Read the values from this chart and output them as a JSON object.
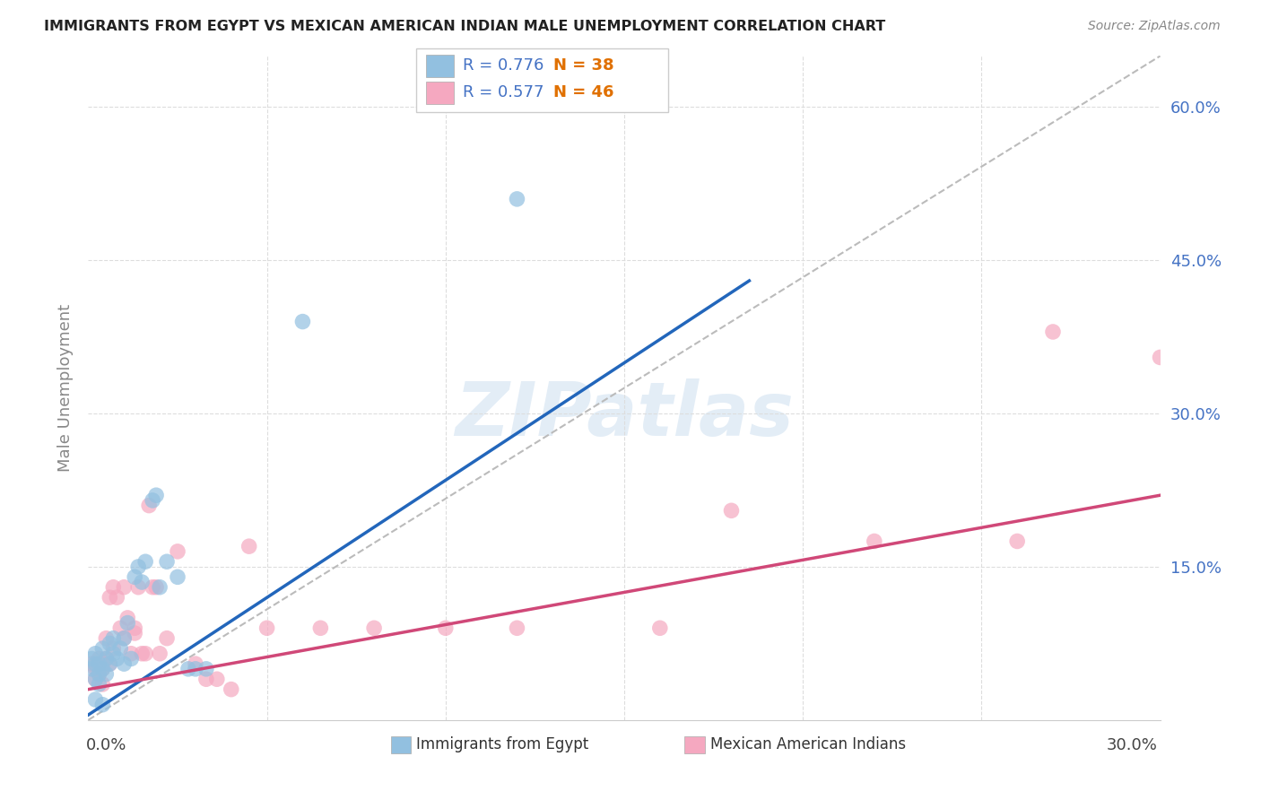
{
  "title": "IMMIGRANTS FROM EGYPT VS MEXICAN AMERICAN INDIAN MALE UNEMPLOYMENT CORRELATION CHART",
  "source": "Source: ZipAtlas.com",
  "ylabel": "Male Unemployment",
  "xlim": [
    0.0,
    0.3
  ],
  "ylim": [
    0.0,
    0.65
  ],
  "watermark": "ZIPatlas",
  "blue_color": "#92c0e0",
  "pink_color": "#f5a8c0",
  "blue_line_color": "#2266bb",
  "pink_line_color": "#d04878",
  "diag_color": "#bbbbbb",
  "grid_color": "#dddddd",
  "blue_scatter": [
    [
      0.001,
      0.05
    ],
    [
      0.001,
      0.06
    ],
    [
      0.002,
      0.055
    ],
    [
      0.002,
      0.04
    ],
    [
      0.002,
      0.065
    ],
    [
      0.003,
      0.045
    ],
    [
      0.003,
      0.055
    ],
    [
      0.003,
      0.035
    ],
    [
      0.004,
      0.05
    ],
    [
      0.004,
      0.07
    ],
    [
      0.005,
      0.06
    ],
    [
      0.005,
      0.045
    ],
    [
      0.006,
      0.075
    ],
    [
      0.006,
      0.055
    ],
    [
      0.007,
      0.065
    ],
    [
      0.007,
      0.08
    ],
    [
      0.008,
      0.06
    ],
    [
      0.009,
      0.07
    ],
    [
      0.01,
      0.055
    ],
    [
      0.01,
      0.08
    ],
    [
      0.011,
      0.095
    ],
    [
      0.012,
      0.06
    ],
    [
      0.013,
      0.14
    ],
    [
      0.014,
      0.15
    ],
    [
      0.015,
      0.135
    ],
    [
      0.016,
      0.155
    ],
    [
      0.018,
      0.215
    ],
    [
      0.019,
      0.22
    ],
    [
      0.02,
      0.13
    ],
    [
      0.022,
      0.155
    ],
    [
      0.025,
      0.14
    ],
    [
      0.028,
      0.05
    ],
    [
      0.03,
      0.05
    ],
    [
      0.033,
      0.05
    ],
    [
      0.002,
      0.02
    ],
    [
      0.004,
      0.015
    ],
    [
      0.06,
      0.39
    ],
    [
      0.12,
      0.51
    ]
  ],
  "pink_scatter": [
    [
      0.001,
      0.055
    ],
    [
      0.002,
      0.05
    ],
    [
      0.002,
      0.04
    ],
    [
      0.003,
      0.06
    ],
    [
      0.003,
      0.045
    ],
    [
      0.004,
      0.035
    ],
    [
      0.004,
      0.05
    ],
    [
      0.005,
      0.06
    ],
    [
      0.005,
      0.08
    ],
    [
      0.006,
      0.055
    ],
    [
      0.006,
      0.12
    ],
    [
      0.007,
      0.07
    ],
    [
      0.007,
      0.13
    ],
    [
      0.008,
      0.12
    ],
    [
      0.009,
      0.09
    ],
    [
      0.01,
      0.08
    ],
    [
      0.01,
      0.13
    ],
    [
      0.011,
      0.1
    ],
    [
      0.012,
      0.065
    ],
    [
      0.013,
      0.085
    ],
    [
      0.013,
      0.09
    ],
    [
      0.014,
      0.13
    ],
    [
      0.015,
      0.065
    ],
    [
      0.016,
      0.065
    ],
    [
      0.017,
      0.21
    ],
    [
      0.018,
      0.13
    ],
    [
      0.019,
      0.13
    ],
    [
      0.02,
      0.065
    ],
    [
      0.022,
      0.08
    ],
    [
      0.025,
      0.165
    ],
    [
      0.03,
      0.055
    ],
    [
      0.033,
      0.04
    ],
    [
      0.036,
      0.04
    ],
    [
      0.04,
      0.03
    ],
    [
      0.045,
      0.17
    ],
    [
      0.05,
      0.09
    ],
    [
      0.065,
      0.09
    ],
    [
      0.08,
      0.09
    ],
    [
      0.1,
      0.09
    ],
    [
      0.12,
      0.09
    ],
    [
      0.16,
      0.09
    ],
    [
      0.18,
      0.205
    ],
    [
      0.22,
      0.175
    ],
    [
      0.26,
      0.175
    ],
    [
      0.27,
      0.38
    ],
    [
      0.3,
      0.355
    ]
  ],
  "blue_line": {
    "x0": 0.0,
    "y0": 0.005,
    "x1": 0.185,
    "y1": 0.43
  },
  "pink_line": {
    "x0": 0.0,
    "y0": 0.03,
    "x1": 0.3,
    "y1": 0.22
  },
  "hticks": [
    0.15,
    0.3,
    0.45,
    0.6
  ],
  "vticks": [
    0.05,
    0.1,
    0.15,
    0.2,
    0.25
  ],
  "right_tick_labels": [
    "",
    "15.0%",
    "30.0%",
    "45.0%",
    "60.0%"
  ],
  "right_tick_color": "#4472c4",
  "legend_R_color": "#4472c4",
  "legend_N_color": "#e07000",
  "legend_blue_R": "R = 0.776",
  "legend_blue_N": "N = 38",
  "legend_pink_R": "R = 0.577",
  "legend_pink_N": "N = 46",
  "bottom_label_blue": "Immigrants from Egypt",
  "bottom_label_pink": "Mexican American Indians"
}
